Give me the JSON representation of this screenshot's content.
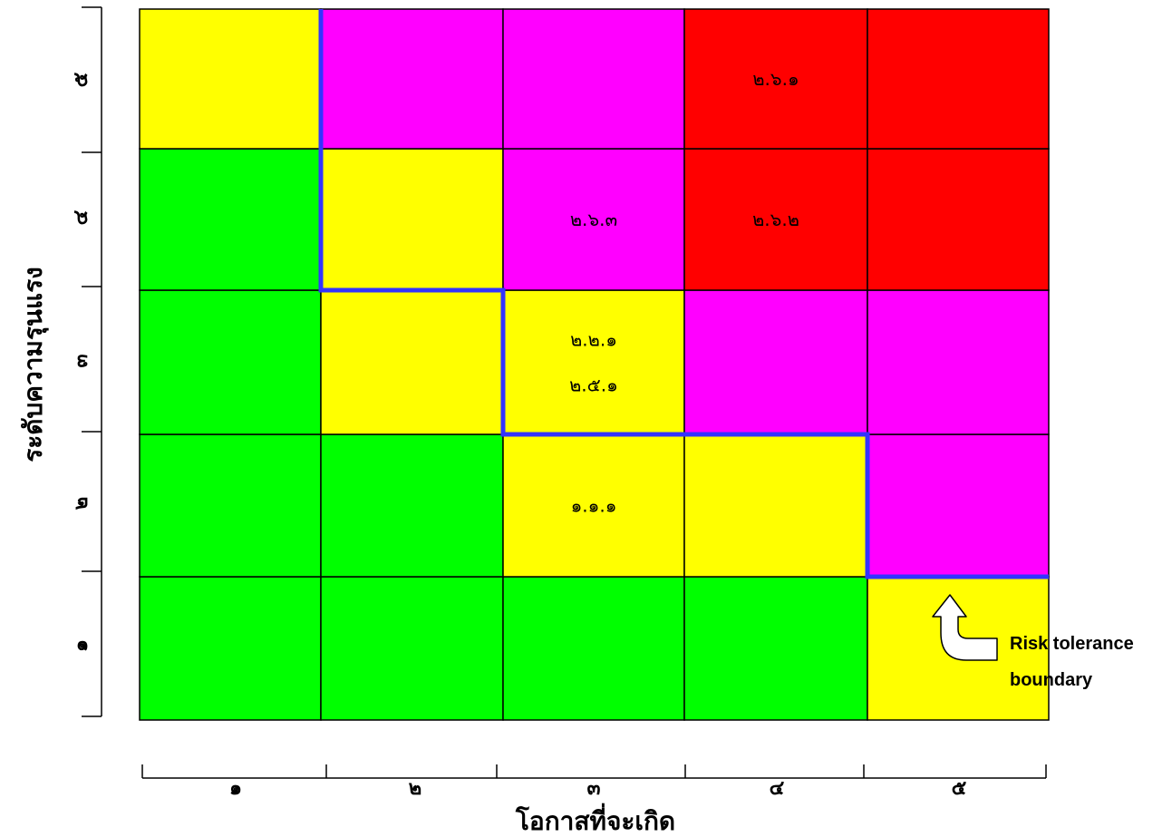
{
  "chart_data": {
    "type": "heatmap",
    "title": "",
    "xlabel": "โอกาสที่จะเกิด",
    "ylabel": "ระดับความรุนแรง",
    "x_categories": [
      "๑",
      "๒",
      "๓",
      "๔",
      "๕"
    ],
    "y_categories": [
      "๑",
      "๒",
      "๓",
      "๔",
      "๕"
    ],
    "level_colors": {
      "low": "#00ff00",
      "medium": "#ffff00",
      "high": "#ff00ff",
      "very_high": "#ff0000"
    },
    "boundary_color": "#3333ff",
    "levels": [
      [
        "low",
        "low",
        "low",
        "low",
        "medium"
      ],
      [
        "low",
        "low",
        "medium",
        "medium",
        "high"
      ],
      [
        "low",
        "medium",
        "medium",
        "high",
        "high"
      ],
      [
        "low",
        "medium",
        "high",
        "very_high",
        "very_high"
      ],
      [
        "medium",
        "high",
        "high",
        "very_high",
        "very_high"
      ]
    ],
    "risk_items": [
      {
        "code": "๒.๖.๑",
        "likelihood": 4,
        "severity": 5
      },
      {
        "code": "๒.๖.๓",
        "likelihood": 3,
        "severity": 4
      },
      {
        "code": "๒.๖.๒",
        "likelihood": 4,
        "severity": 4
      },
      {
        "code": "๒.๒.๑",
        "likelihood": 3,
        "severity": 3
      },
      {
        "code": "๒.๕.๑",
        "likelihood": 3,
        "severity": 3
      },
      {
        "code": "๑.๑.๑",
        "likelihood": 3,
        "severity": 2
      }
    ],
    "tolerance_boundary_min_severity": [
      5,
      4,
      3,
      3,
      2
    ],
    "annotation": {
      "line1": "Risk tolerance",
      "line2": "boundary",
      "icon": "curved-up-arrow-icon",
      "likelihood": 5,
      "severity": 1
    }
  }
}
